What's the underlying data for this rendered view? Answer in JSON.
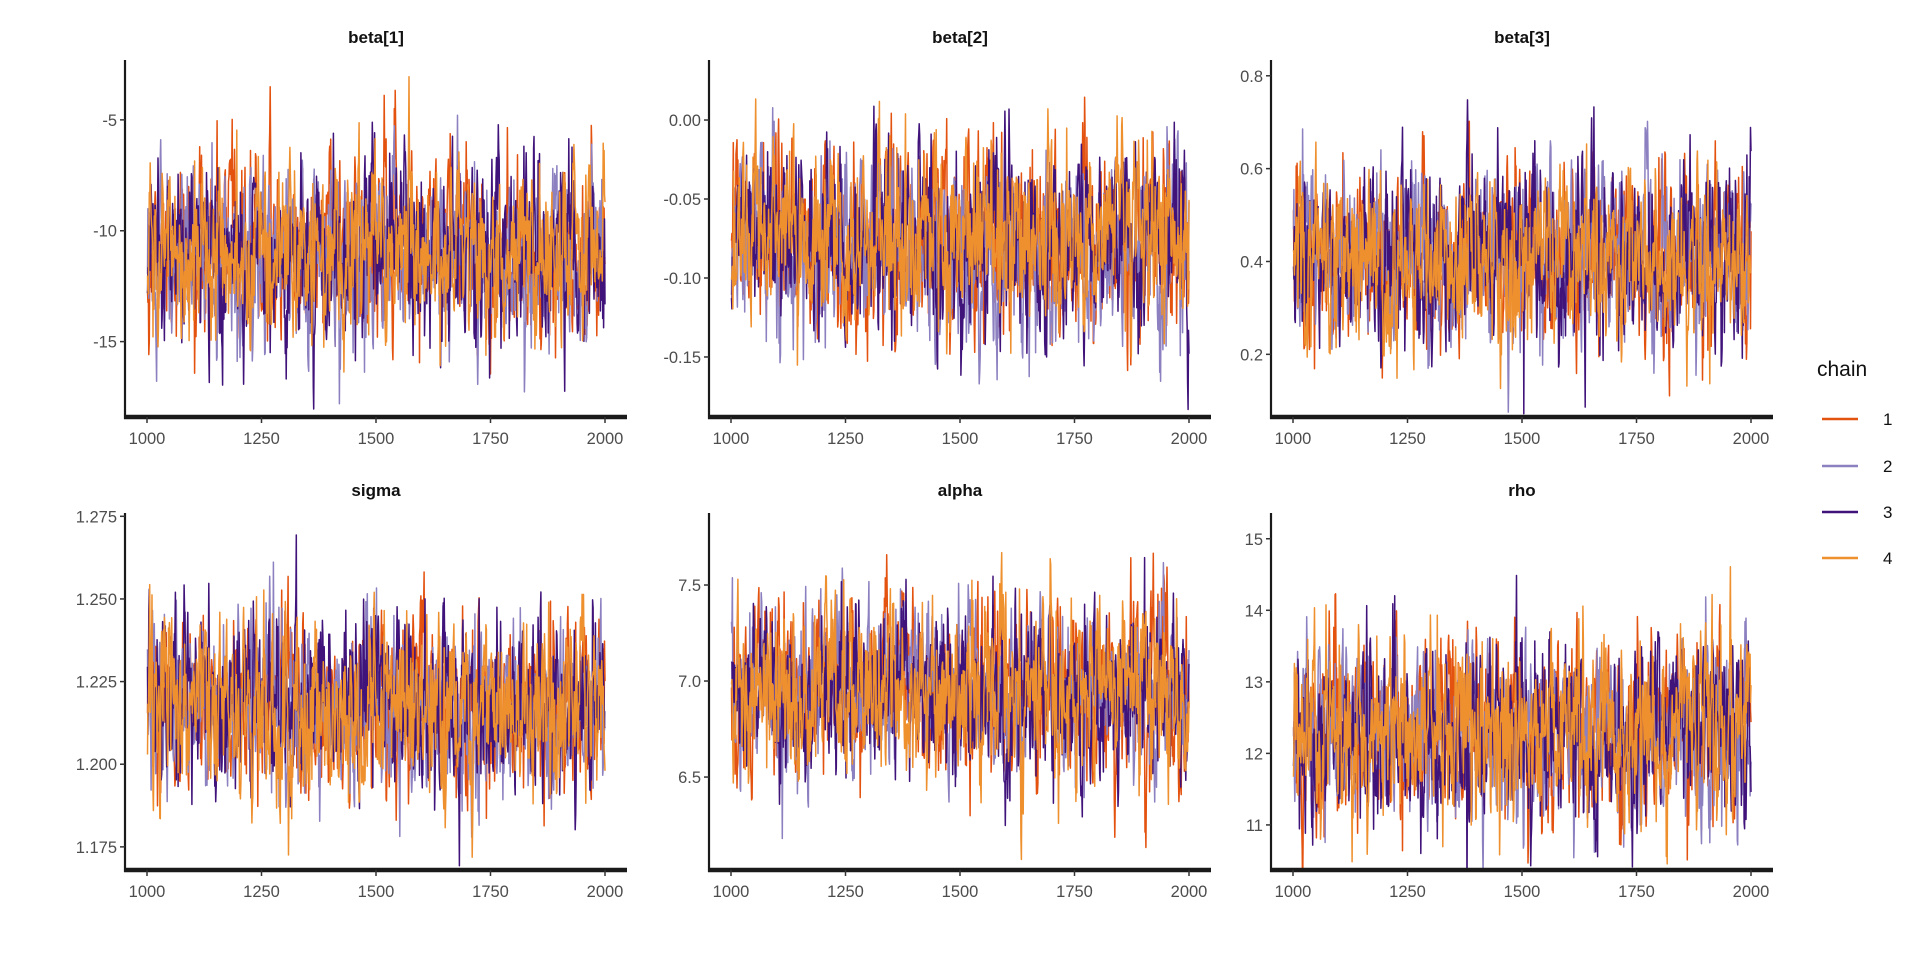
{
  "chart_data": {
    "type": "line",
    "title": "",
    "xlabel": "",
    "ylabel": "",
    "xlim": [
      1000,
      2000
    ],
    "iterations": [
      1001,
      2000
    ],
    "grid": false,
    "legend_placement": "right",
    "xticks": [
      "1000",
      "1250",
      "1500",
      "1750",
      "2000"
    ],
    "xtick_values": [
      1000,
      1250,
      1500,
      1750,
      2000
    ],
    "legend": {
      "title": "chain",
      "items": [
        {
          "label": "1",
          "color": "#e4520f"
        },
        {
          "label": "2",
          "color": "#8c80c0"
        },
        {
          "label": "3",
          "color": "#40137a"
        },
        {
          "label": "4",
          "color": "#ef902f"
        }
      ]
    },
    "facets": [
      {
        "title": "beta[1]",
        "ylim": [
          -18.4,
          -2.3
        ],
        "yticks": [
          "-5",
          "-10",
          "-15"
        ],
        "ytick_values": [
          -5,
          -10,
          -15
        ],
        "chains": [
          {
            "chain": "1",
            "mean": -10.9,
            "sd": 1.9
          },
          {
            "chain": "2",
            "mean": -11.0,
            "sd": 2.0
          },
          {
            "chain": "3",
            "mean": -11.1,
            "sd": 2.1
          },
          {
            "chain": "4",
            "mean": -10.9,
            "sd": 1.9
          }
        ]
      },
      {
        "title": "beta[2]",
        "ylim": [
          -0.188,
          0.038
        ],
        "yticks": [
          "0.00",
          "-0.05",
          "-0.10",
          "-0.15"
        ],
        "ytick_values": [
          0,
          -0.05,
          -0.1,
          -0.15
        ],
        "chains": [
          {
            "chain": "1",
            "mean": -0.075,
            "sd": 0.029
          },
          {
            "chain": "2",
            "mean": -0.078,
            "sd": 0.029
          },
          {
            "chain": "3",
            "mean": -0.077,
            "sd": 0.03
          },
          {
            "chain": "4",
            "mean": -0.074,
            "sd": 0.029
          }
        ]
      },
      {
        "title": "beta[3]",
        "ylim": [
          0.065,
          0.834
        ],
        "yticks": [
          "0.8",
          "0.6",
          "0.4",
          "0.2"
        ],
        "ytick_values": [
          0.8,
          0.6,
          0.4,
          0.2
        ],
        "chains": [
          {
            "chain": "1",
            "mean": 0.41,
            "sd": 0.095
          },
          {
            "chain": "2",
            "mean": 0.42,
            "sd": 0.095
          },
          {
            "chain": "3",
            "mean": 0.42,
            "sd": 0.1
          },
          {
            "chain": "4",
            "mean": 0.41,
            "sd": 0.09
          }
        ]
      },
      {
        "title": "sigma",
        "ylim": [
          1.168,
          1.276
        ],
        "yticks": [
          "1.275",
          "1.250",
          "1.225",
          "1.200",
          "1.175"
        ],
        "ytick_values": [
          1.275,
          1.25,
          1.225,
          1.2,
          1.175
        ],
        "chains": [
          {
            "chain": "1",
            "mean": 1.218,
            "sd": 0.013
          },
          {
            "chain": "2",
            "mean": 1.218,
            "sd": 0.013
          },
          {
            "chain": "3",
            "mean": 1.218,
            "sd": 0.013
          },
          {
            "chain": "4",
            "mean": 1.218,
            "sd": 0.013
          }
        ]
      },
      {
        "title": "alpha",
        "ylim": [
          6.016,
          7.875
        ],
        "yticks": [
          "7.5",
          "7.0",
          "6.5"
        ],
        "ytick_values": [
          7.5,
          7.0,
          6.5
        ],
        "chains": [
          {
            "chain": "1",
            "mean": 6.94,
            "sd": 0.22
          },
          {
            "chain": "2",
            "mean": 6.95,
            "sd": 0.22
          },
          {
            "chain": "3",
            "mean": 6.94,
            "sd": 0.23
          },
          {
            "chain": "4",
            "mean": 6.95,
            "sd": 0.22
          }
        ]
      },
      {
        "title": "rho",
        "ylim": [
          10.37,
          15.36
        ],
        "yticks": [
          "15",
          "14",
          "13",
          "12",
          "11"
        ],
        "ytick_values": [
          15,
          14,
          13,
          12,
          11
        ],
        "chains": [
          {
            "chain": "1",
            "mean": 12.3,
            "sd": 0.6
          },
          {
            "chain": "2",
            "mean": 12.3,
            "sd": 0.6
          },
          {
            "chain": "3",
            "mean": 12.3,
            "sd": 0.62
          },
          {
            "chain": "4",
            "mean": 12.3,
            "sd": 0.6
          }
        ]
      }
    ]
  }
}
